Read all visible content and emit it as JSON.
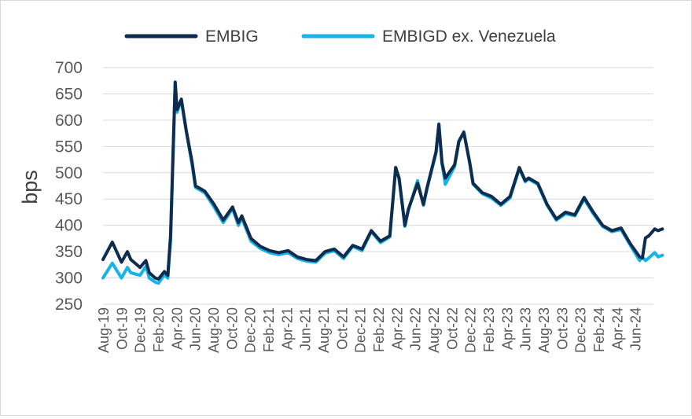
{
  "chart_data": {
    "type": "line",
    "ylabel": "bps",
    "xlabel": "",
    "ylim": [
      250,
      700
    ],
    "yticks": [
      250,
      300,
      350,
      400,
      450,
      500,
      550,
      600,
      650,
      700
    ],
    "x_tick_labels": [
      "Aug-19",
      "Oct-19",
      "Dec-19",
      "Feb-20",
      "Apr-20",
      "Jun-20",
      "Aug-20",
      "Oct-20",
      "Dec-20",
      "Feb-21",
      "Apr-21",
      "Jun-21",
      "Aug-21",
      "Oct-21",
      "Dec-21",
      "Feb-22",
      "Apr-22",
      "Jun-22",
      "Aug-22",
      "Oct-22",
      "Dec-22",
      "Feb-23",
      "Apr-23",
      "Jun-23",
      "Aug-23",
      "Oct-23",
      "Dec-23",
      "Feb-24",
      "Apr-24",
      "Jun-24"
    ],
    "x_range_months": [
      "2019-08",
      "2024-07"
    ],
    "grid": "horizontal",
    "legend_position": "top",
    "series": [
      {
        "name": "EMBIG",
        "color": "#0f2c4f",
        "points": [
          [
            "2019-08",
            335
          ],
          [
            "2019-09",
            368
          ],
          [
            "2019-10",
            330
          ],
          [
            "2019-10-20",
            350
          ],
          [
            "2019-11",
            335
          ],
          [
            "2019-12",
            320
          ],
          [
            "2019-12-20",
            333
          ],
          [
            "2020-01",
            310
          ],
          [
            "2020-01-20",
            300
          ],
          [
            "2020-02",
            298
          ],
          [
            "2020-02-20",
            312
          ],
          [
            "2020-03",
            305
          ],
          [
            "2020-03-10",
            380
          ],
          [
            "2020-03-25",
            672
          ],
          [
            "2020-04",
            620
          ],
          [
            "2020-04-15",
            640
          ],
          [
            "2020-05",
            580
          ],
          [
            "2020-05-20",
            520
          ],
          [
            "2020-06",
            475
          ],
          [
            "2020-07",
            465
          ],
          [
            "2020-08",
            440
          ],
          [
            "2020-09",
            410
          ],
          [
            "2020-10",
            435
          ],
          [
            "2020-10-20",
            405
          ],
          [
            "2020-11",
            418
          ],
          [
            "2020-12",
            375
          ],
          [
            "2021-01",
            360
          ],
          [
            "2021-02",
            352
          ],
          [
            "2021-03",
            348
          ],
          [
            "2021-04",
            352
          ],
          [
            "2021-05",
            340
          ],
          [
            "2021-06",
            335
          ],
          [
            "2021-07",
            333
          ],
          [
            "2021-08",
            350
          ],
          [
            "2021-09",
            355
          ],
          [
            "2021-10",
            340
          ],
          [
            "2021-11",
            362
          ],
          [
            "2021-12",
            355
          ],
          [
            "2022-01",
            390
          ],
          [
            "2022-02",
            370
          ],
          [
            "2022-03",
            380
          ],
          [
            "2022-03-20",
            510
          ],
          [
            "2022-04",
            490
          ],
          [
            "2022-04-20",
            400
          ],
          [
            "2022-05",
            430
          ],
          [
            "2022-06",
            480
          ],
          [
            "2022-06-20",
            440
          ],
          [
            "2022-07",
            470
          ],
          [
            "2022-08",
            540
          ],
          [
            "2022-08-10",
            592
          ],
          [
            "2022-08-20",
            520
          ],
          [
            "2022-09",
            490
          ],
          [
            "2022-10",
            515
          ],
          [
            "2022-10-15",
            560
          ],
          [
            "2022-11",
            577
          ],
          [
            "2022-11-20",
            520
          ],
          [
            "2022-12",
            480
          ],
          [
            "2023-01",
            462
          ],
          [
            "2023-02",
            455
          ],
          [
            "2023-03",
            440
          ],
          [
            "2023-04",
            455
          ],
          [
            "2023-05",
            510
          ],
          [
            "2023-05-20",
            485
          ],
          [
            "2023-06",
            490
          ],
          [
            "2023-07",
            480
          ],
          [
            "2023-08",
            440
          ],
          [
            "2023-09",
            412
          ],
          [
            "2023-10",
            425
          ],
          [
            "2023-11",
            420
          ],
          [
            "2023-12",
            453
          ],
          [
            "2024-01",
            425
          ],
          [
            "2024-02",
            400
          ],
          [
            "2024-03",
            390
          ],
          [
            "2024-04",
            395
          ],
          [
            "2024-05",
            365
          ],
          [
            "2024-06",
            340
          ],
          [
            "2024-06-10",
            338
          ],
          [
            "2024-06-20",
            376
          ],
          [
            "2024-07",
            380
          ],
          [
            "2024-07-20",
            393
          ],
          [
            "2024-08",
            390
          ],
          [
            "2024-08-15",
            393
          ]
        ]
      },
      {
        "name": "EMBIGD ex. Venezuela",
        "color": "#14b4e8",
        "points": [
          [
            "2019-08",
            300
          ],
          [
            "2019-09",
            328
          ],
          [
            "2019-10",
            300
          ],
          [
            "2019-10-20",
            320
          ],
          [
            "2019-11",
            310
          ],
          [
            "2019-12",
            305
          ],
          [
            "2019-12-20",
            322
          ],
          [
            "2020-01",
            300
          ],
          [
            "2020-01-20",
            292
          ],
          [
            "2020-02",
            290
          ],
          [
            "2020-02-20",
            306
          ],
          [
            "2020-03",
            300
          ],
          [
            "2020-03-10",
            370
          ],
          [
            "2020-03-25",
            673
          ],
          [
            "2020-04",
            615
          ],
          [
            "2020-04-15",
            637
          ],
          [
            "2020-05",
            578
          ],
          [
            "2020-05-20",
            515
          ],
          [
            "2020-06",
            472
          ],
          [
            "2020-07",
            462
          ],
          [
            "2020-08",
            435
          ],
          [
            "2020-09",
            405
          ],
          [
            "2020-10",
            432
          ],
          [
            "2020-10-20",
            400
          ],
          [
            "2020-11",
            414
          ],
          [
            "2020-12",
            370
          ],
          [
            "2021-01",
            356
          ],
          [
            "2021-02",
            348
          ],
          [
            "2021-03",
            344
          ],
          [
            "2021-04",
            348
          ],
          [
            "2021-05",
            337
          ],
          [
            "2021-06",
            332
          ],
          [
            "2021-07",
            330
          ],
          [
            "2021-08",
            347
          ],
          [
            "2021-09",
            352
          ],
          [
            "2021-10",
            337
          ],
          [
            "2021-11",
            360
          ],
          [
            "2021-12",
            352
          ],
          [
            "2022-01",
            388
          ],
          [
            "2022-02",
            367
          ],
          [
            "2022-03",
            378
          ],
          [
            "2022-03-20",
            510
          ],
          [
            "2022-04",
            488
          ],
          [
            "2022-04-20",
            398
          ],
          [
            "2022-05",
            428
          ],
          [
            "2022-06",
            485
          ],
          [
            "2022-06-20",
            438
          ],
          [
            "2022-07",
            468
          ],
          [
            "2022-08",
            538
          ],
          [
            "2022-08-10",
            593
          ],
          [
            "2022-08-20",
            518
          ],
          [
            "2022-09",
            478
          ],
          [
            "2022-10",
            512
          ],
          [
            "2022-10-15",
            558
          ],
          [
            "2022-11",
            578
          ],
          [
            "2022-11-20",
            518
          ],
          [
            "2022-12",
            478
          ],
          [
            "2023-01",
            460
          ],
          [
            "2023-02",
            452
          ],
          [
            "2023-03",
            438
          ],
          [
            "2023-04",
            452
          ],
          [
            "2023-05",
            508
          ],
          [
            "2023-05-20",
            483
          ],
          [
            "2023-06",
            488
          ],
          [
            "2023-07",
            478
          ],
          [
            "2023-08",
            438
          ],
          [
            "2023-09",
            410
          ],
          [
            "2023-10",
            422
          ],
          [
            "2023-11",
            418
          ],
          [
            "2023-12",
            450
          ],
          [
            "2024-01",
            422
          ],
          [
            "2024-02",
            398
          ],
          [
            "2024-03",
            388
          ],
          [
            "2024-04",
            392
          ],
          [
            "2024-05",
            362
          ],
          [
            "2024-06",
            333
          ],
          [
            "2024-06-10",
            340
          ],
          [
            "2024-06-20",
            333
          ],
          [
            "2024-07",
            338
          ],
          [
            "2024-07-20",
            348
          ],
          [
            "2024-08",
            340
          ],
          [
            "2024-08-15",
            343
          ]
        ]
      }
    ]
  }
}
